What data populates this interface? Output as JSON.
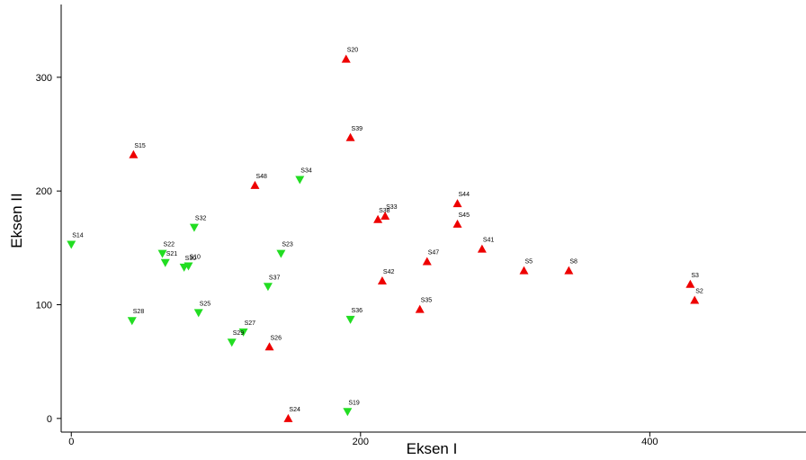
{
  "chart_data": {
    "type": "scatter",
    "x_label": "Eksen I",
    "y_label": "Eksen II",
    "xlim": [
      -7,
      508
    ],
    "ylim": [
      -12,
      364
    ],
    "xticks": [
      0,
      200,
      400
    ],
    "yticks": [
      0,
      100,
      200,
      300
    ],
    "series": [
      {
        "color": "#ee0000",
        "marker": "triangle-up",
        "labels": [
          "S20",
          "S39",
          "S15",
          "S48",
          "S38",
          "S33",
          "S44",
          "S45",
          "S41",
          "S47",
          "S5",
          "S8",
          "S3",
          "S2",
          "S42",
          "S35",
          "S26",
          "S24"
        ],
        "x": [
          190,
          193,
          43,
          127,
          212,
          217,
          267,
          267,
          284,
          246,
          313,
          344,
          428,
          431,
          215,
          241,
          137,
          150
        ],
        "values": [
          316,
          247,
          232,
          205,
          175,
          178,
          189,
          171,
          149,
          138,
          130,
          130,
          118,
          104,
          121,
          96,
          63,
          0
        ]
      },
      {
        "color": "#22dd22",
        "marker": "triangle-down",
        "labels": [
          "S34",
          "S32",
          "S14",
          "S22",
          "S23",
          "S21",
          "S30",
          "S10",
          "S37",
          "S28",
          "S25",
          "S36",
          "S27",
          "S29",
          "S19"
        ],
        "x": [
          158,
          85,
          0,
          63,
          145,
          65,
          78,
          81,
          136,
          42,
          88,
          193,
          119,
          111,
          191
        ],
        "values": [
          210,
          168,
          153,
          145,
          145,
          137,
          133,
          134,
          116,
          86,
          93,
          87,
          76,
          67,
          6
        ]
      }
    ]
  }
}
